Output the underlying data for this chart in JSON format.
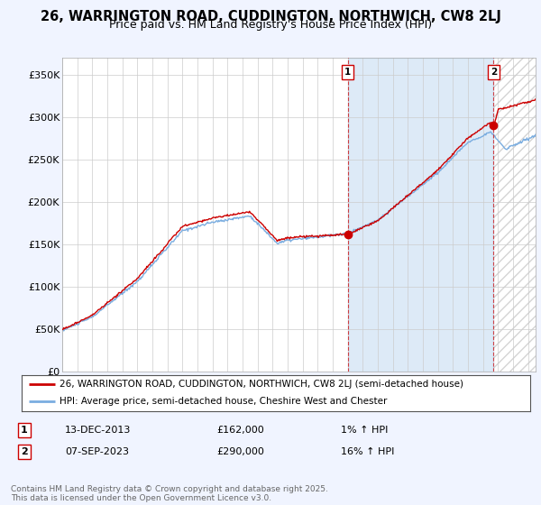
{
  "title_line1": "26, WARRINGTON ROAD, CUDDINGTON, NORTHWICH, CW8 2LJ",
  "title_line2": "Price paid vs. HM Land Registry's House Price Index (HPI)",
  "ylabel_ticks": [
    "£0",
    "£50K",
    "£100K",
    "£150K",
    "£200K",
    "£250K",
    "£300K",
    "£350K"
  ],
  "ytick_values": [
    0,
    50000,
    100000,
    150000,
    200000,
    250000,
    300000,
    350000
  ],
  "ylim": [
    0,
    370000
  ],
  "xlim_start": 1995,
  "xlim_end": 2026.5,
  "hpi_color": "#7aade0",
  "price_color": "#cc0000",
  "background_color": "#f0f4ff",
  "plot_bg_color": "#ffffff",
  "shade_color": "#ddeeff",
  "legend_line1": "26, WARRINGTON ROAD, CUDDINGTON, NORTHWICH, CW8 2LJ (semi-detached house)",
  "legend_line2": "HPI: Average price, semi-detached house, Cheshire West and Chester",
  "annotation1_label": "1",
  "annotation1_date": "13-DEC-2013",
  "annotation1_price": "£162,000",
  "annotation1_hpi": "1% ↑ HPI",
  "annotation1_year": 2014.0,
  "annotation1_value": 162000,
  "annotation2_label": "2",
  "annotation2_date": "07-SEP-2023",
  "annotation2_price": "£290,000",
  "annotation2_hpi": "16% ↑ HPI",
  "annotation2_year": 2023.7,
  "annotation2_value": 290000,
  "footer_text": "Contains HM Land Registry data © Crown copyright and database right 2025.\nThis data is licensed under the Open Government Licence v3.0."
}
